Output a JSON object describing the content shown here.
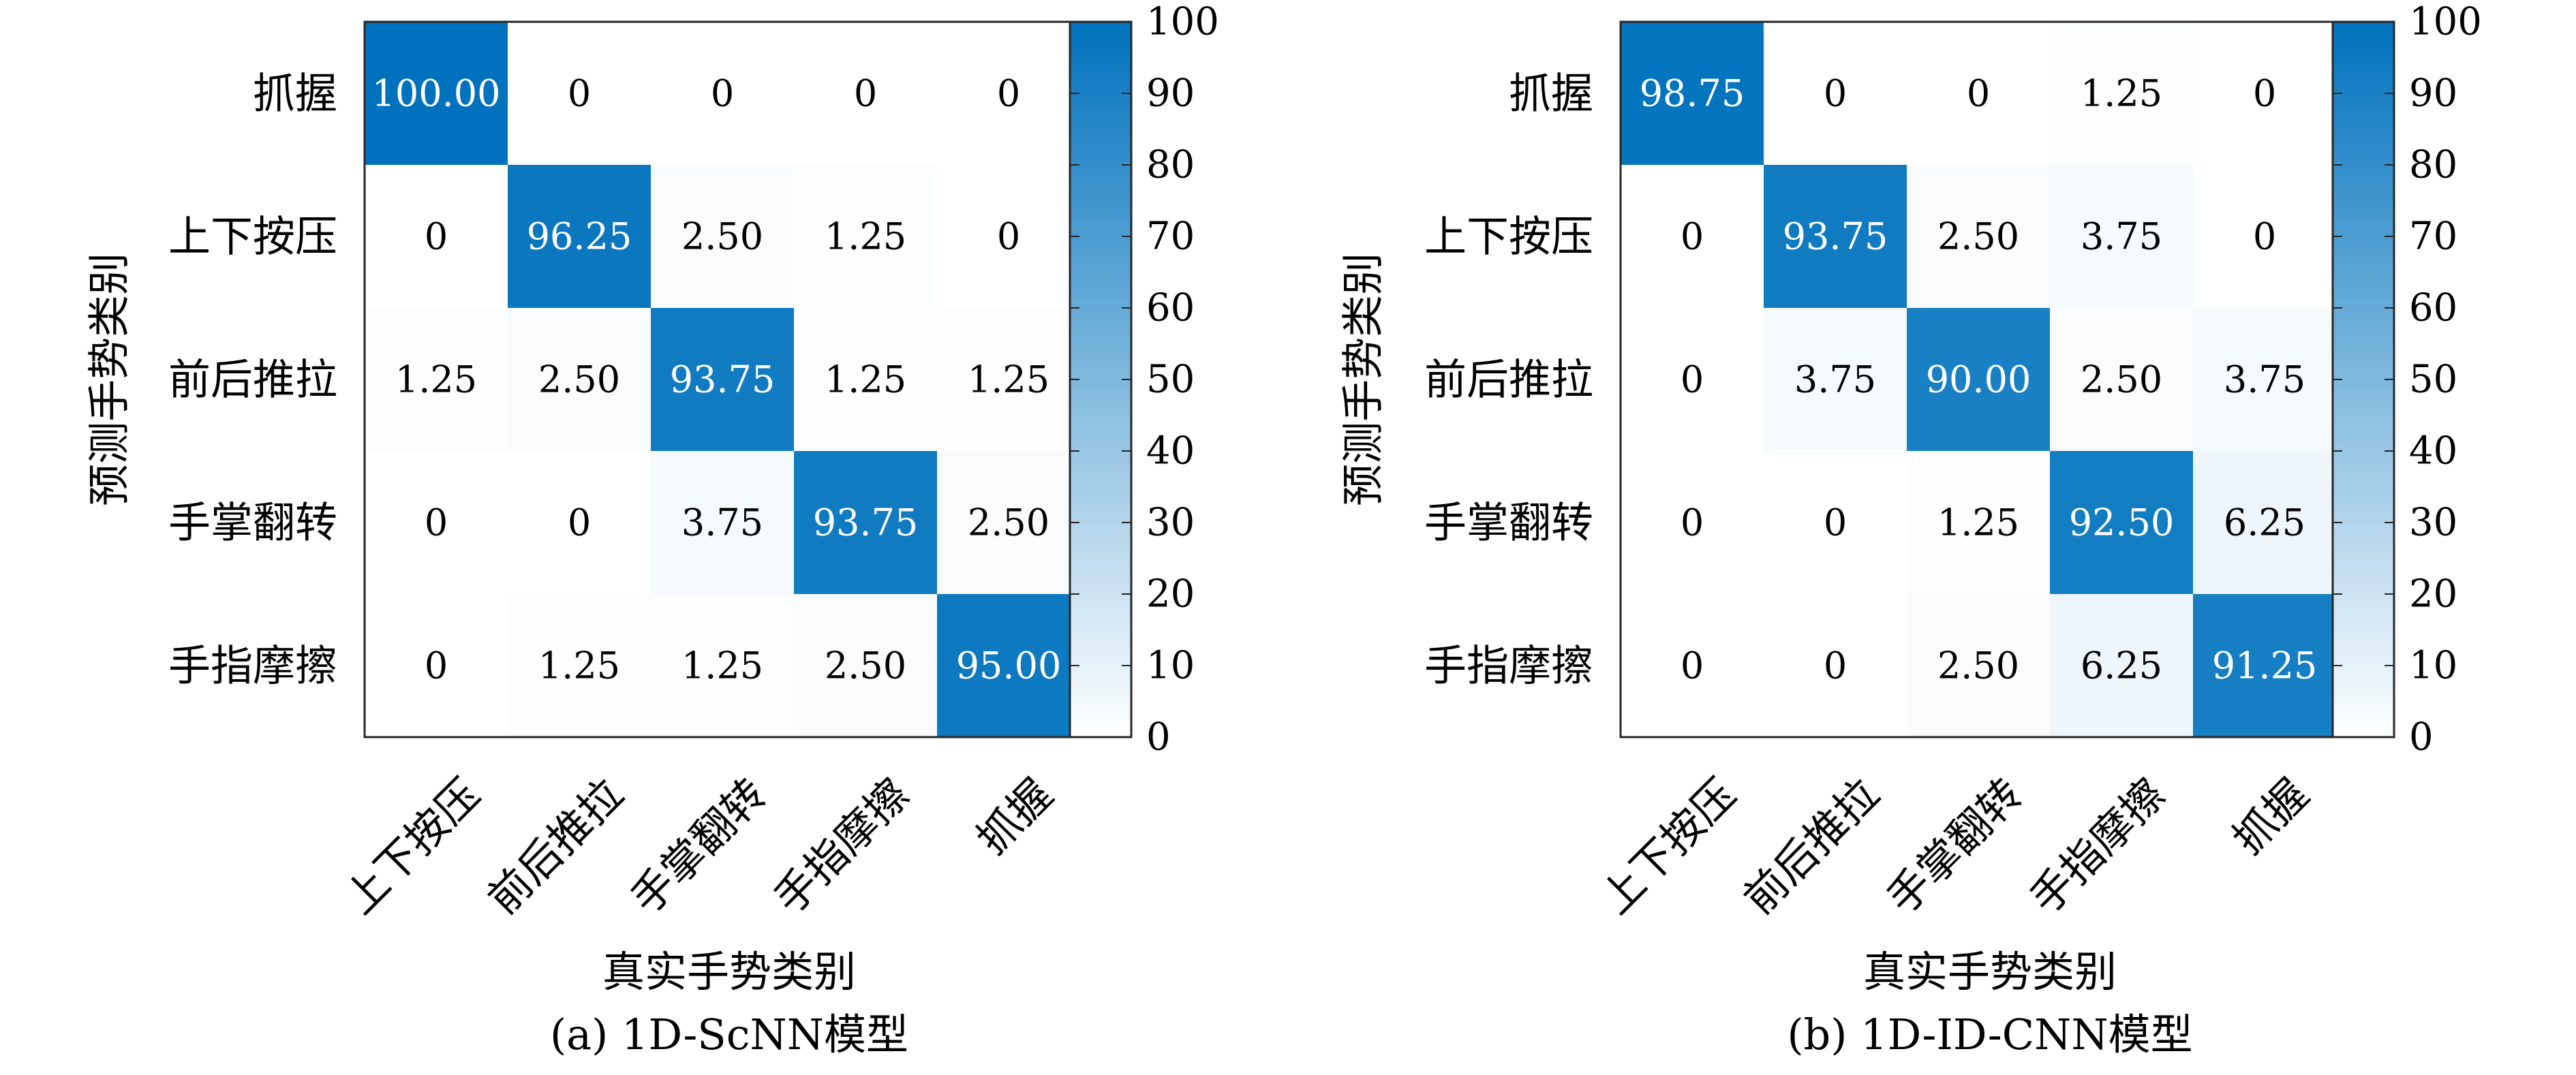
{
  "chart_data": [
    {
      "type": "heatmap",
      "caption": "(a) 1D-ScNN模型",
      "xlabel": "真实手势类别",
      "ylabel": "预测手势类别",
      "x_categories": [
        "上下按压",
        "前后推拉",
        "手掌翻转",
        "手指摩擦",
        "抓握"
      ],
      "y_categories": [
        "抓握",
        "上下按压",
        "前后推拉",
        "手掌翻转",
        "手指摩擦"
      ],
      "values": [
        [
          "100.00",
          "0",
          "0",
          "0",
          "0"
        ],
        [
          "0",
          "96.25",
          "2.50",
          "1.25",
          "0"
        ],
        [
          "1.25",
          "2.50",
          "93.75",
          "1.25",
          "1.25"
        ],
        [
          "0",
          "0",
          "3.75",
          "93.75",
          "2.50"
        ],
        [
          "0",
          "1.25",
          "1.25",
          "2.50",
          "95.00"
        ]
      ],
      "colorbar": {
        "range": [
          0,
          100
        ],
        "ticks": [
          "0",
          "10",
          "20",
          "30",
          "40",
          "50",
          "60",
          "70",
          "80",
          "90",
          "100"
        ]
      }
    },
    {
      "type": "heatmap",
      "caption": "(b) 1D-ID-CNN模型",
      "xlabel": "真实手势类别",
      "ylabel": "预测手势类别",
      "x_categories": [
        "上下按压",
        "前后推拉",
        "手掌翻转",
        "手指摩擦",
        "抓握"
      ],
      "y_categories": [
        "抓握",
        "上下按压",
        "前后推拉",
        "手掌翻转",
        "手指摩擦"
      ],
      "values": [
        [
          "98.75",
          "0",
          "0",
          "1.25",
          "0"
        ],
        [
          "0",
          "93.75",
          "2.50",
          "3.75",
          "0"
        ],
        [
          "0",
          "3.75",
          "90.00",
          "2.50",
          "3.75"
        ],
        [
          "0",
          "0",
          "1.25",
          "92.50",
          "6.25"
        ],
        [
          "0",
          "0",
          "2.50",
          "6.25",
          "91.25"
        ]
      ],
      "colorbar": {
        "range": [
          0,
          100
        ],
        "ticks": [
          "0",
          "10",
          "20",
          "30",
          "40",
          "50",
          "60",
          "70",
          "80",
          "90",
          "100"
        ]
      }
    }
  ],
  "colors": {
    "low": "#ffffff",
    "high": "#0072bd",
    "axis": "#262626",
    "text_dark": "#000000",
    "text_light": "#ffffff"
  }
}
